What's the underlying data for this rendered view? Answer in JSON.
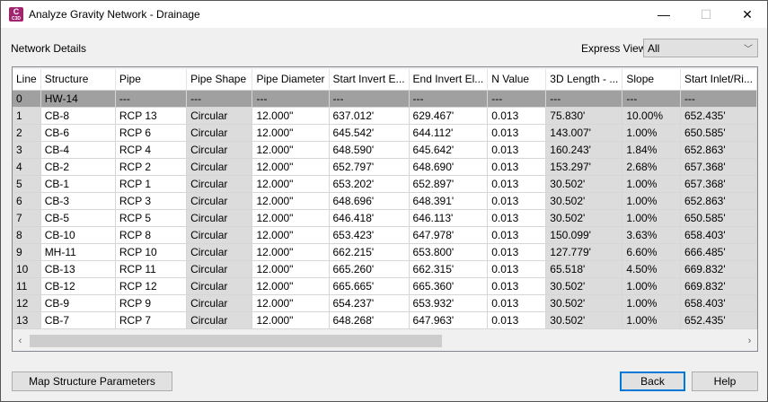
{
  "window": {
    "title": "Analyze Gravity Network - Drainage",
    "icon_letter": "C",
    "icon_sub": "C3D",
    "minimize": "—",
    "maximize": "☐",
    "close": "✕"
  },
  "section_label": "Network Details",
  "express_view": {
    "label": "Express View",
    "value": "All"
  },
  "table": {
    "columns": [
      "Line",
      "Structure",
      "Pipe",
      "Pipe Shape",
      "Pipe Diameter",
      "Start Invert E...",
      "End Invert El...",
      "N Value",
      "3D Length - ...",
      "Slope",
      "Start Inlet/Ri..."
    ],
    "rows": [
      [
        "0",
        "HW-14",
        "---",
        "---",
        "---",
        "---",
        "---",
        "---",
        "---",
        "---",
        "---"
      ],
      [
        "1",
        "CB-8",
        "RCP 13",
        "Circular",
        "12.000\"",
        "637.012'",
        "629.467'",
        "0.013",
        "75.830'",
        "10.00%",
        "652.435'"
      ],
      [
        "2",
        "CB-6",
        "RCP 6",
        "Circular",
        "12.000\"",
        "645.542'",
        "644.112'",
        "0.013",
        "143.007'",
        "1.00%",
        "650.585'"
      ],
      [
        "3",
        "CB-4",
        "RCP 4",
        "Circular",
        "12.000\"",
        "648.590'",
        "645.642'",
        "0.013",
        "160.243'",
        "1.84%",
        "652.863'"
      ],
      [
        "4",
        "CB-2",
        "RCP 2",
        "Circular",
        "12.000\"",
        "652.797'",
        "648.690'",
        "0.013",
        "153.297'",
        "2.68%",
        "657.368'"
      ],
      [
        "5",
        "CB-1",
        "RCP 1",
        "Circular",
        "12.000\"",
        "653.202'",
        "652.897'",
        "0.013",
        "30.502'",
        "1.00%",
        "657.368'"
      ],
      [
        "6",
        "CB-3",
        "RCP 3",
        "Circular",
        "12.000\"",
        "648.696'",
        "648.391'",
        "0.013",
        "30.502'",
        "1.00%",
        "652.863'"
      ],
      [
        "7",
        "CB-5",
        "RCP 5",
        "Circular",
        "12.000\"",
        "646.418'",
        "646.113'",
        "0.013",
        "30.502'",
        "1.00%",
        "650.585'"
      ],
      [
        "8",
        "CB-10",
        "RCP 8",
        "Circular",
        "12.000\"",
        "653.423'",
        "647.978'",
        "0.013",
        "150.099'",
        "3.63%",
        "658.403'"
      ],
      [
        "9",
        "MH-11",
        "RCP 10",
        "Circular",
        "12.000\"",
        "662.215'",
        "653.800'",
        "0.013",
        "127.779'",
        "6.60%",
        "666.485'"
      ],
      [
        "10",
        "CB-13",
        "RCP 11",
        "Circular",
        "12.000\"",
        "665.260'",
        "662.315'",
        "0.013",
        "65.518'",
        "4.50%",
        "669.832'"
      ],
      [
        "11",
        "CB-12",
        "RCP 12",
        "Circular",
        "12.000\"",
        "665.665'",
        "665.360'",
        "0.013",
        "30.502'",
        "1.00%",
        "669.832'"
      ],
      [
        "12",
        "CB-9",
        "RCP 9",
        "Circular",
        "12.000\"",
        "654.237'",
        "653.932'",
        "0.013",
        "30.502'",
        "1.00%",
        "658.403'"
      ],
      [
        "13",
        "CB-7",
        "RCP 7",
        "Circular",
        "12.000\"",
        "648.268'",
        "647.963'",
        "0.013",
        "30.502'",
        "1.00%",
        "652.435'"
      ]
    ]
  },
  "buttons": {
    "map": "Map Structure Parameters",
    "back": "Back",
    "help": "Help"
  },
  "scroll": {
    "left": "‹",
    "right": "›"
  }
}
